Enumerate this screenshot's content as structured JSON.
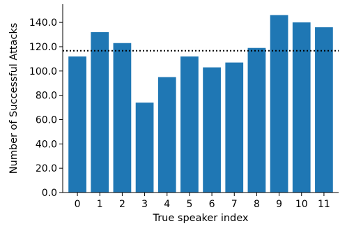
{
  "chart_data": {
    "type": "bar",
    "categories": [
      "0",
      "1",
      "2",
      "3",
      "4",
      "5",
      "6",
      "7",
      "8",
      "9",
      "10",
      "11"
    ],
    "values": [
      112,
      132,
      123,
      74,
      95,
      112,
      103,
      107,
      119,
      146,
      140,
      136
    ],
    "title": "",
    "xlabel": "True speaker index",
    "ylabel": "Number of Successful Attacks",
    "ylim": [
      0,
      155
    ],
    "yticks": [
      "0.0",
      "20.0",
      "40.0",
      "60.0",
      "80.0",
      "100.0",
      "120.0",
      "140.0"
    ],
    "reference_line": {
      "value": 116.7,
      "style": "dotted"
    },
    "grid": false,
    "legend": "none",
    "colors": {
      "bar": "#1f77b4",
      "reference_line": "#000000",
      "axis": "#000000"
    }
  }
}
